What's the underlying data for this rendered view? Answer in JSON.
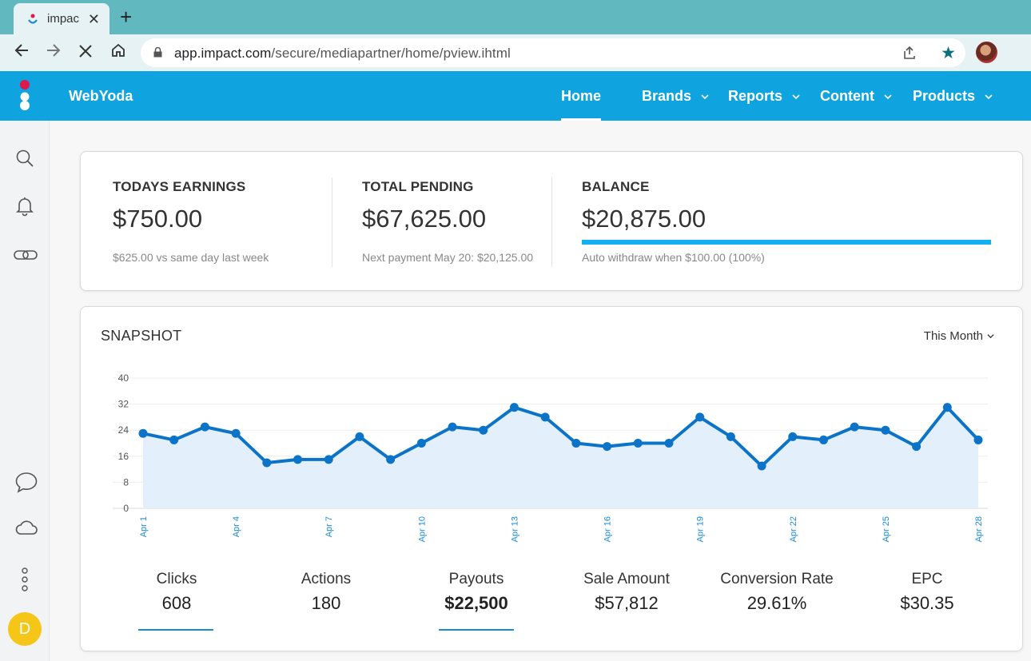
{
  "browser": {
    "tab_title": "impac",
    "url_host": "app.impact.com",
    "url_path": "/secure/mediapartner/home/pview.ihtml"
  },
  "app": {
    "brand": "WebYoda",
    "nav": [
      {
        "label": "Home"
      },
      {
        "label": "Brands"
      },
      {
        "label": "Reports"
      },
      {
        "label": "Content"
      },
      {
        "label": "Products"
      }
    ],
    "accent_color": "#0fa3e0",
    "avatar_initial": "D"
  },
  "stats": {
    "todays_earnings": {
      "label": "TODAYS EARNINGS",
      "value": "$750.00",
      "sub": "$625.00 vs same day last week"
    },
    "total_pending": {
      "label": "TOTAL PENDING",
      "value": "$67,625.00",
      "sub": "Next payment May 20: $20,125.00"
    },
    "balance": {
      "label": "BALANCE",
      "value": "$20,875.00",
      "sub": "Auto withdraw when $100.00 (100%)",
      "progress_percent": 100
    }
  },
  "snapshot": {
    "title": "SNAPSHOT",
    "range": "This Month",
    "metrics": [
      {
        "label": "Clicks",
        "value": "608",
        "selected": true
      },
      {
        "label": "Actions",
        "value": "180",
        "selected": false
      },
      {
        "label": "Payouts",
        "value": "$22,500",
        "selected": true
      },
      {
        "label": "Sale Amount",
        "value": "$57,812",
        "selected": false
      },
      {
        "label": "Conversion Rate",
        "value": "29.61%",
        "selected": false
      },
      {
        "label": "EPC",
        "value": "$30.35",
        "selected": false
      }
    ]
  },
  "chart_data": {
    "type": "area",
    "title": "",
    "xlabel": "",
    "ylabel": "",
    "ylim": [
      0,
      40
    ],
    "yticks": [
      0,
      8,
      16,
      24,
      32,
      40
    ],
    "xtick_labels": [
      "Apr 1",
      "Apr 4",
      "Apr 7",
      "Apr 10",
      "Apr 13",
      "Apr 16",
      "Apr 19",
      "Apr 22",
      "Apr 25",
      "Apr 28"
    ],
    "x": [
      "Apr 1",
      "Apr 2",
      "Apr 3",
      "Apr 4",
      "Apr 5",
      "Apr 6",
      "Apr 7",
      "Apr 8",
      "Apr 9",
      "Apr 10",
      "Apr 11",
      "Apr 12",
      "Apr 13",
      "Apr 14",
      "Apr 15",
      "Apr 16",
      "Apr 17",
      "Apr 18",
      "Apr 19",
      "Apr 20",
      "Apr 21",
      "Apr 22",
      "Apr 23",
      "Apr 24",
      "Apr 25",
      "Apr 26",
      "Apr 27",
      "Apr 28"
    ],
    "series": [
      {
        "values": [
          23,
          21,
          25,
          23,
          14,
          15,
          15,
          22,
          15,
          20,
          25,
          24,
          31,
          28,
          20,
          19,
          20,
          20,
          28,
          22,
          13,
          22,
          21,
          25,
          24,
          19,
          31,
          21
        ]
      }
    ],
    "grid": true,
    "line_color": "#0b74c8",
    "fill_color": "#e3effb"
  }
}
